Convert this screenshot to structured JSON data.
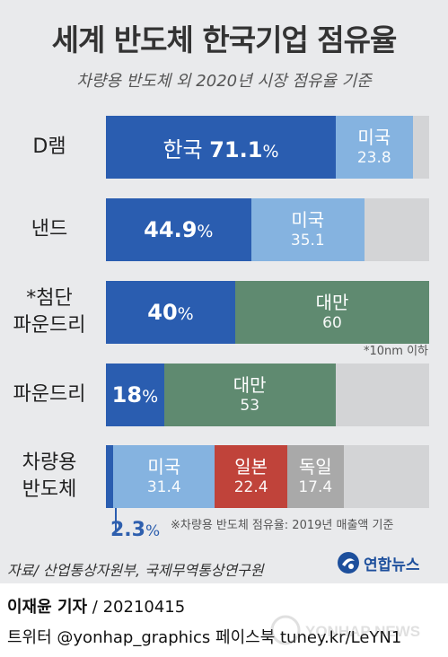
{
  "header": {
    "title": "세계 반도체 한국기업 점유율",
    "subtitle": "차량용 반도체 외 2020년 시장 점유율 기준"
  },
  "chart_data": {
    "type": "bar",
    "orientation": "horizontal",
    "stacked": true,
    "unit": "%",
    "xlim": [
      0,
      100
    ],
    "rows": [
      {
        "label": "D램",
        "segments": [
          {
            "name": "한국",
            "value": 71.1,
            "color": "#2a5db0",
            "text": "71.1"
          },
          {
            "name": "미국",
            "value": 23.8,
            "color": "#85b3e0",
            "text": "23.8"
          }
        ]
      },
      {
        "label": "낸드",
        "segments": [
          {
            "name": "",
            "value": 44.9,
            "color": "#2a5db0",
            "text": "44.9"
          },
          {
            "name": "미국",
            "value": 35.1,
            "color": "#85b3e0",
            "text": "35.1"
          }
        ]
      },
      {
        "label": "*첨단\n파운드리",
        "segments": [
          {
            "name": "",
            "value": 40,
            "color": "#2a5db0",
            "text": "40"
          },
          {
            "name": "대만",
            "value": 60,
            "color": "#5f8a70",
            "text": "60"
          }
        ]
      },
      {
        "label": "파운드리",
        "segments": [
          {
            "name": "",
            "value": 18,
            "color": "#2a5db0",
            "text": "18"
          },
          {
            "name": "대만",
            "value": 53,
            "color": "#5f8a70",
            "text": "53"
          }
        ]
      },
      {
        "label": "차량용\n반도체",
        "segments": [
          {
            "name": "",
            "value": 2.3,
            "color": "#2a5db0",
            "text": "2.3"
          },
          {
            "name": "미국",
            "value": 31.4,
            "color": "#85b3e0",
            "text": "31.4"
          },
          {
            "name": "일본",
            "value": 22.4,
            "color": "#c0433a",
            "text": "22.4"
          },
          {
            "name": "독일",
            "value": 17.4,
            "color": "#a9a9a9",
            "text": "17.4"
          }
        ]
      }
    ],
    "remainder_color": "#d3d4d6",
    "percent_sign": "%",
    "notes": {
      "advanced_foundry": "*10nm 이하",
      "automotive": "※차량용 반도체 점유율: 2019년 매출액 기준"
    }
  },
  "source": "자료/ 산업통상자원부, 국제무역통상연구원",
  "logo": {
    "text": "연합뉴스"
  },
  "footer": {
    "reporter": "이재윤 기자",
    "date": " / 20210415",
    "social": "트위터 @yonhap_graphics  페이스북 tuney.kr/LeYN1"
  },
  "watermark": "YONHAP NEWS"
}
